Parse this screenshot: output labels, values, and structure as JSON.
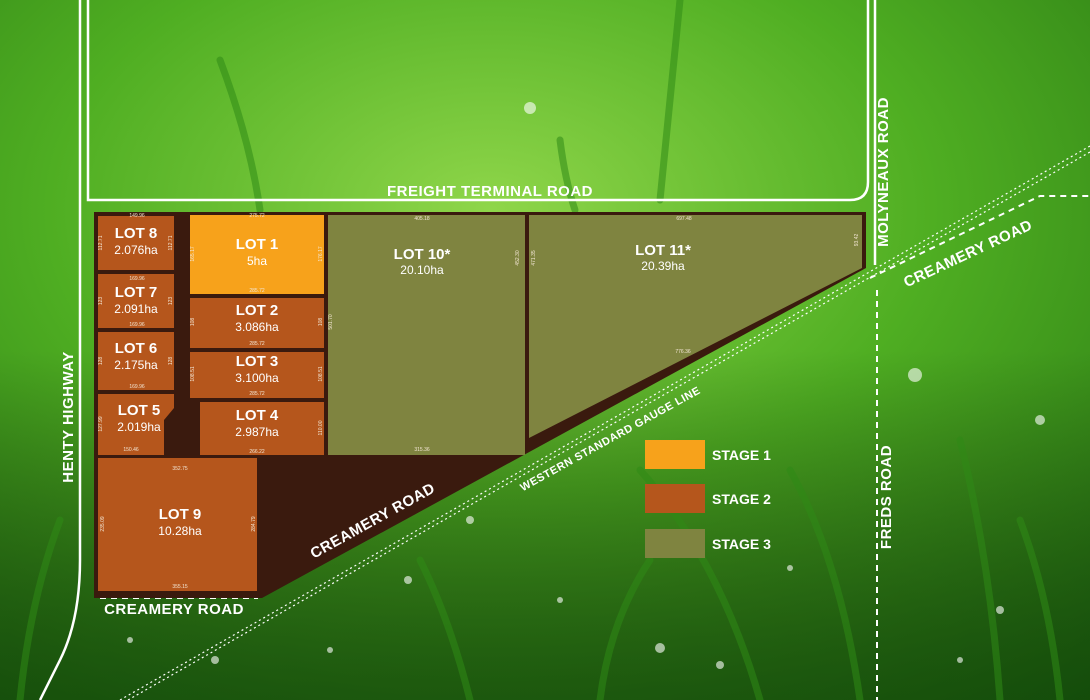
{
  "roads": {
    "freight_terminal": "FREIGHT TERMINAL ROAD",
    "molyneaux": "MOLYNEAUX ROAD",
    "creamery_right": "CREAMERY ROAD",
    "henty": "HENTY HIGHWAY",
    "freds": "FREDS ROAD",
    "creamery_diagonal": "CREAMERY ROAD",
    "creamery_bottom": "CREAMERY ROAD",
    "rail_line": "WESTERN STANDARD GAUGE LINE"
  },
  "colors": {
    "stage1": "#f7a21b",
    "stage2": "#b5561c",
    "stage3": "#7f8440",
    "boundary": "#3a1a0e"
  },
  "lots": [
    {
      "key": "lot8",
      "name": "LOT 8",
      "area": "2.076ha",
      "stage": 2
    },
    {
      "key": "lot7",
      "name": "LOT 7",
      "area": "2.091ha",
      "stage": 2
    },
    {
      "key": "lot6",
      "name": "LOT 6",
      "area": "2.175ha",
      "stage": 2
    },
    {
      "key": "lot5",
      "name": "LOT 5",
      "area": "2.019ha",
      "stage": 2
    },
    {
      "key": "lot9",
      "name": "LOT 9",
      "area": "10.28ha",
      "stage": 2
    },
    {
      "key": "lot1",
      "name": "LOT 1",
      "area": "5ha",
      "stage": 1
    },
    {
      "key": "lot2",
      "name": "LOT 2",
      "area": "3.086ha",
      "stage": 2
    },
    {
      "key": "lot3",
      "name": "LOT 3",
      "area": "3.100ha",
      "stage": 2
    },
    {
      "key": "lot4",
      "name": "LOT 4",
      "area": "2.987ha",
      "stage": 2
    },
    {
      "key": "lot10",
      "name": "LOT 10*",
      "area": "20.10ha",
      "stage": 3
    },
    {
      "key": "lot11",
      "name": "LOT 11*",
      "area": "20.39ha",
      "stage": 3
    }
  ],
  "dimensions": {
    "lot8_top": "149.96",
    "lot8_left": "112.71",
    "lot8_right": "112.71",
    "lot7_top": "169.96",
    "lot7_left": "123",
    "lot7_right": "123",
    "lot7_bottom": "169.96",
    "lot6_left": "128",
    "lot6_right": "128",
    "lot6_bottom": "169.96",
    "lot5_left": "127.99",
    "lot5_bottom": "150.46",
    "lot1_top": "275.72",
    "lot1_left": "165.17",
    "lot1_right": "176.17",
    "lot1_bottom": "285.72",
    "lot2_left": "108",
    "lot2_right": "108",
    "lot2_bottom": "285.72",
    "lot3_left": "108.51",
    "lot3_right": "108.51",
    "lot3_bottom": "285.72",
    "lot4_right": "110.00",
    "lot4_bottom": "266.22",
    "lot9_top": "352.75",
    "lot9_left": "235.09",
    "lot9_right": "284.79",
    "lot9_bottom": "355.15",
    "lot10_top": "405.18",
    "lot10_left": "501.70",
    "lot10_right": "452.30",
    "lot10_bottom": "315.36",
    "lot11_top": "697.48",
    "lot11_left": "471.35",
    "lot11_right": "93.42",
    "lot11_diag": "776.36"
  },
  "legend": [
    {
      "label": "STAGE 1",
      "color": "#f7a21b"
    },
    {
      "label": "STAGE 2",
      "color": "#b5561c"
    },
    {
      "label": "STAGE 3",
      "color": "#7f8440"
    }
  ]
}
